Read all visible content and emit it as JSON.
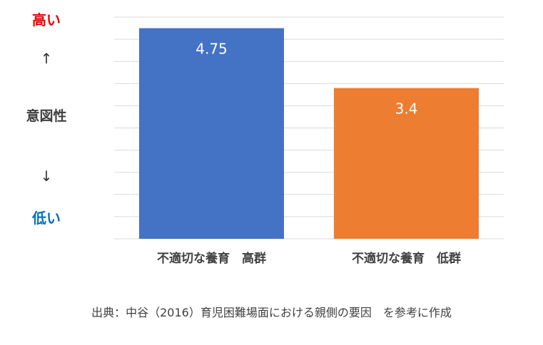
{
  "colors": {
    "high_label": "#e60000",
    "low_label": "#0070c0",
    "grid": "#d9d9d9",
    "axis_text": "#404040"
  },
  "axis_side": {
    "top": "高い",
    "up_arrow": "↑",
    "middle": "意図性",
    "down_arrow": "↓",
    "bottom": "低い"
  },
  "source_note": "出典：中谷（2016）育児困難場面における親側の要因　を参考に作成",
  "chart_data": {
    "type": "bar",
    "categories": [
      "不適切な養育　高群",
      "不適切な養育　低群"
    ],
    "values": [
      4.75,
      3.4
    ],
    "data_labels": [
      "4.75",
      "3.4"
    ],
    "bar_colors": [
      "#4472c4",
      "#ed7d31"
    ],
    "ylim": [
      0,
      5
    ],
    "grid": true,
    "title": "",
    "xlabel": "",
    "ylabel": "意図性"
  }
}
